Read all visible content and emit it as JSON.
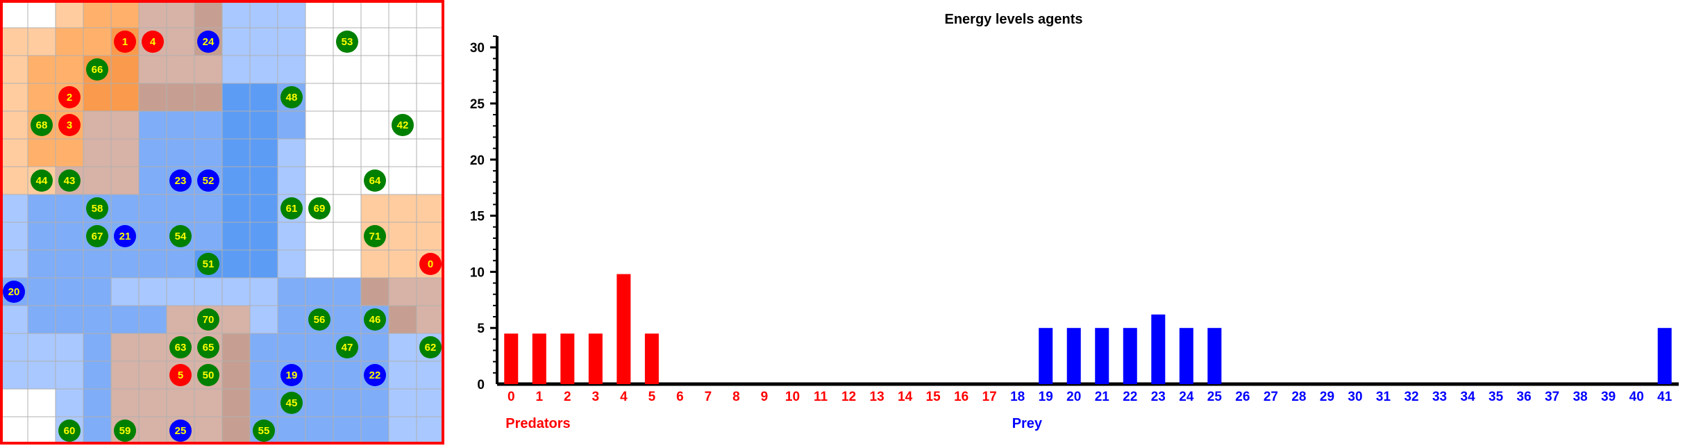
{
  "grid": {
    "rows": 16,
    "cols": 16,
    "colors": {
      "white": "#ffffff",
      "orange_light": "#ffcc9f",
      "orange_mid": "#ffb16b",
      "orange_dark": "#f99a4d",
      "blue_light": "#a9c8ff",
      "blue_mid": "#7fadf7",
      "blue_dark": "#5c9cf5",
      "brown": "#d7b2a6",
      "brown_dark": "#c69f92",
      "predator": "#ff0000",
      "prey": "#0000ff",
      "plant": "#008000",
      "agent_text": "#ffff00",
      "frame": "#ff0000",
      "grid_line": "#b0b0b0"
    },
    "agents": [
      {
        "id": "1",
        "kind": "predator",
        "row": 1,
        "col": 4
      },
      {
        "id": "4",
        "kind": "predator",
        "row": 1,
        "col": 5
      },
      {
        "id": "24",
        "kind": "prey",
        "row": 1,
        "col": 7
      },
      {
        "id": "53",
        "kind": "plant",
        "row": 1,
        "col": 12
      },
      {
        "id": "66",
        "kind": "plant",
        "row": 2,
        "col": 3
      },
      {
        "id": "2",
        "kind": "predator",
        "row": 3,
        "col": 2
      },
      {
        "id": "48",
        "kind": "plant",
        "row": 3,
        "col": 10
      },
      {
        "id": "68",
        "kind": "plant",
        "row": 4,
        "col": 1
      },
      {
        "id": "3",
        "kind": "predator",
        "row": 4,
        "col": 2
      },
      {
        "id": "42",
        "kind": "plant",
        "row": 4,
        "col": 14
      },
      {
        "id": "44",
        "kind": "plant",
        "row": 6,
        "col": 1
      },
      {
        "id": "43",
        "kind": "plant",
        "row": 6,
        "col": 2
      },
      {
        "id": "23",
        "kind": "prey",
        "row": 6,
        "col": 6
      },
      {
        "id": "52",
        "kind": "prey",
        "row": 6,
        "col": 7
      },
      {
        "id": "64",
        "kind": "plant",
        "row": 6,
        "col": 13
      },
      {
        "id": "58",
        "kind": "plant",
        "row": 7,
        "col": 3
      },
      {
        "id": "61",
        "kind": "plant",
        "row": 7,
        "col": 10
      },
      {
        "id": "69",
        "kind": "plant",
        "row": 7,
        "col": 11
      },
      {
        "id": "67",
        "kind": "plant",
        "row": 8,
        "col": 3
      },
      {
        "id": "21",
        "kind": "prey",
        "row": 8,
        "col": 4
      },
      {
        "id": "54",
        "kind": "plant",
        "row": 8,
        "col": 6
      },
      {
        "id": "71",
        "kind": "plant",
        "row": 8,
        "col": 13
      },
      {
        "id": "51",
        "kind": "plant",
        "row": 9,
        "col": 7
      },
      {
        "id": "0",
        "kind": "predator",
        "row": 9,
        "col": 15
      },
      {
        "id": "20",
        "kind": "prey",
        "row": 10,
        "col": 0
      },
      {
        "id": "70",
        "kind": "plant",
        "row": 11,
        "col": 7
      },
      {
        "id": "56",
        "kind": "plant",
        "row": 11,
        "col": 11
      },
      {
        "id": "46",
        "kind": "plant",
        "row": 11,
        "col": 13
      },
      {
        "id": "63",
        "kind": "plant",
        "row": 12,
        "col": 6
      },
      {
        "id": "65",
        "kind": "plant",
        "row": 12,
        "col": 7
      },
      {
        "id": "47",
        "kind": "plant",
        "row": 12,
        "col": 12
      },
      {
        "id": "62",
        "kind": "plant",
        "row": 12,
        "col": 15
      },
      {
        "id": "5",
        "kind": "predator",
        "row": 13,
        "col": 6
      },
      {
        "id": "50",
        "kind": "plant",
        "row": 13,
        "col": 7
      },
      {
        "id": "19",
        "kind": "prey",
        "row": 13,
        "col": 10
      },
      {
        "id": "22",
        "kind": "prey",
        "row": 13,
        "col": 13
      },
      {
        "id": "45",
        "kind": "plant",
        "row": 14,
        "col": 10
      },
      {
        "id": "60",
        "kind": "plant",
        "row": 15,
        "col": 2
      },
      {
        "id": "59",
        "kind": "plant",
        "row": 15,
        "col": 4
      },
      {
        "id": "25",
        "kind": "prey",
        "row": 15,
        "col": 6
      },
      {
        "id": "55",
        "kind": "plant",
        "row": 15,
        "col": 9
      }
    ]
  },
  "chart_data": {
    "type": "bar",
    "title": "Energy levels agents",
    "ylim": [
      0,
      31
    ],
    "yticks": [
      "0",
      "5",
      "10",
      "15",
      "20",
      "25",
      "30"
    ],
    "categories": [
      "0",
      "1",
      "2",
      "3",
      "4",
      "5",
      "6",
      "7",
      "8",
      "9",
      "10",
      "11",
      "12",
      "13",
      "14",
      "15",
      "16",
      "17",
      "18",
      "19",
      "20",
      "21",
      "22",
      "23",
      "24",
      "25",
      "26",
      "27",
      "28",
      "29",
      "30",
      "31",
      "32",
      "33",
      "34",
      "35",
      "36",
      "37",
      "38",
      "39",
      "40",
      "41"
    ],
    "values": [
      4.5,
      4.5,
      4.5,
      4.5,
      9.8,
      4.5,
      0,
      0,
      0,
      0,
      0,
      0,
      0,
      0,
      0,
      0,
      0,
      0,
      0,
      5,
      5,
      5,
      5,
      6.2,
      5,
      5,
      0,
      0,
      0,
      0,
      0,
      0,
      0,
      0,
      0,
      0,
      0,
      0,
      0,
      0,
      0,
      5
    ],
    "groups": [
      {
        "label": "Predators",
        "from": 0,
        "to": 17,
        "color": "#ff0000"
      },
      {
        "label": "Prey",
        "from": 18,
        "to": 41,
        "color": "#0000ff"
      }
    ]
  }
}
